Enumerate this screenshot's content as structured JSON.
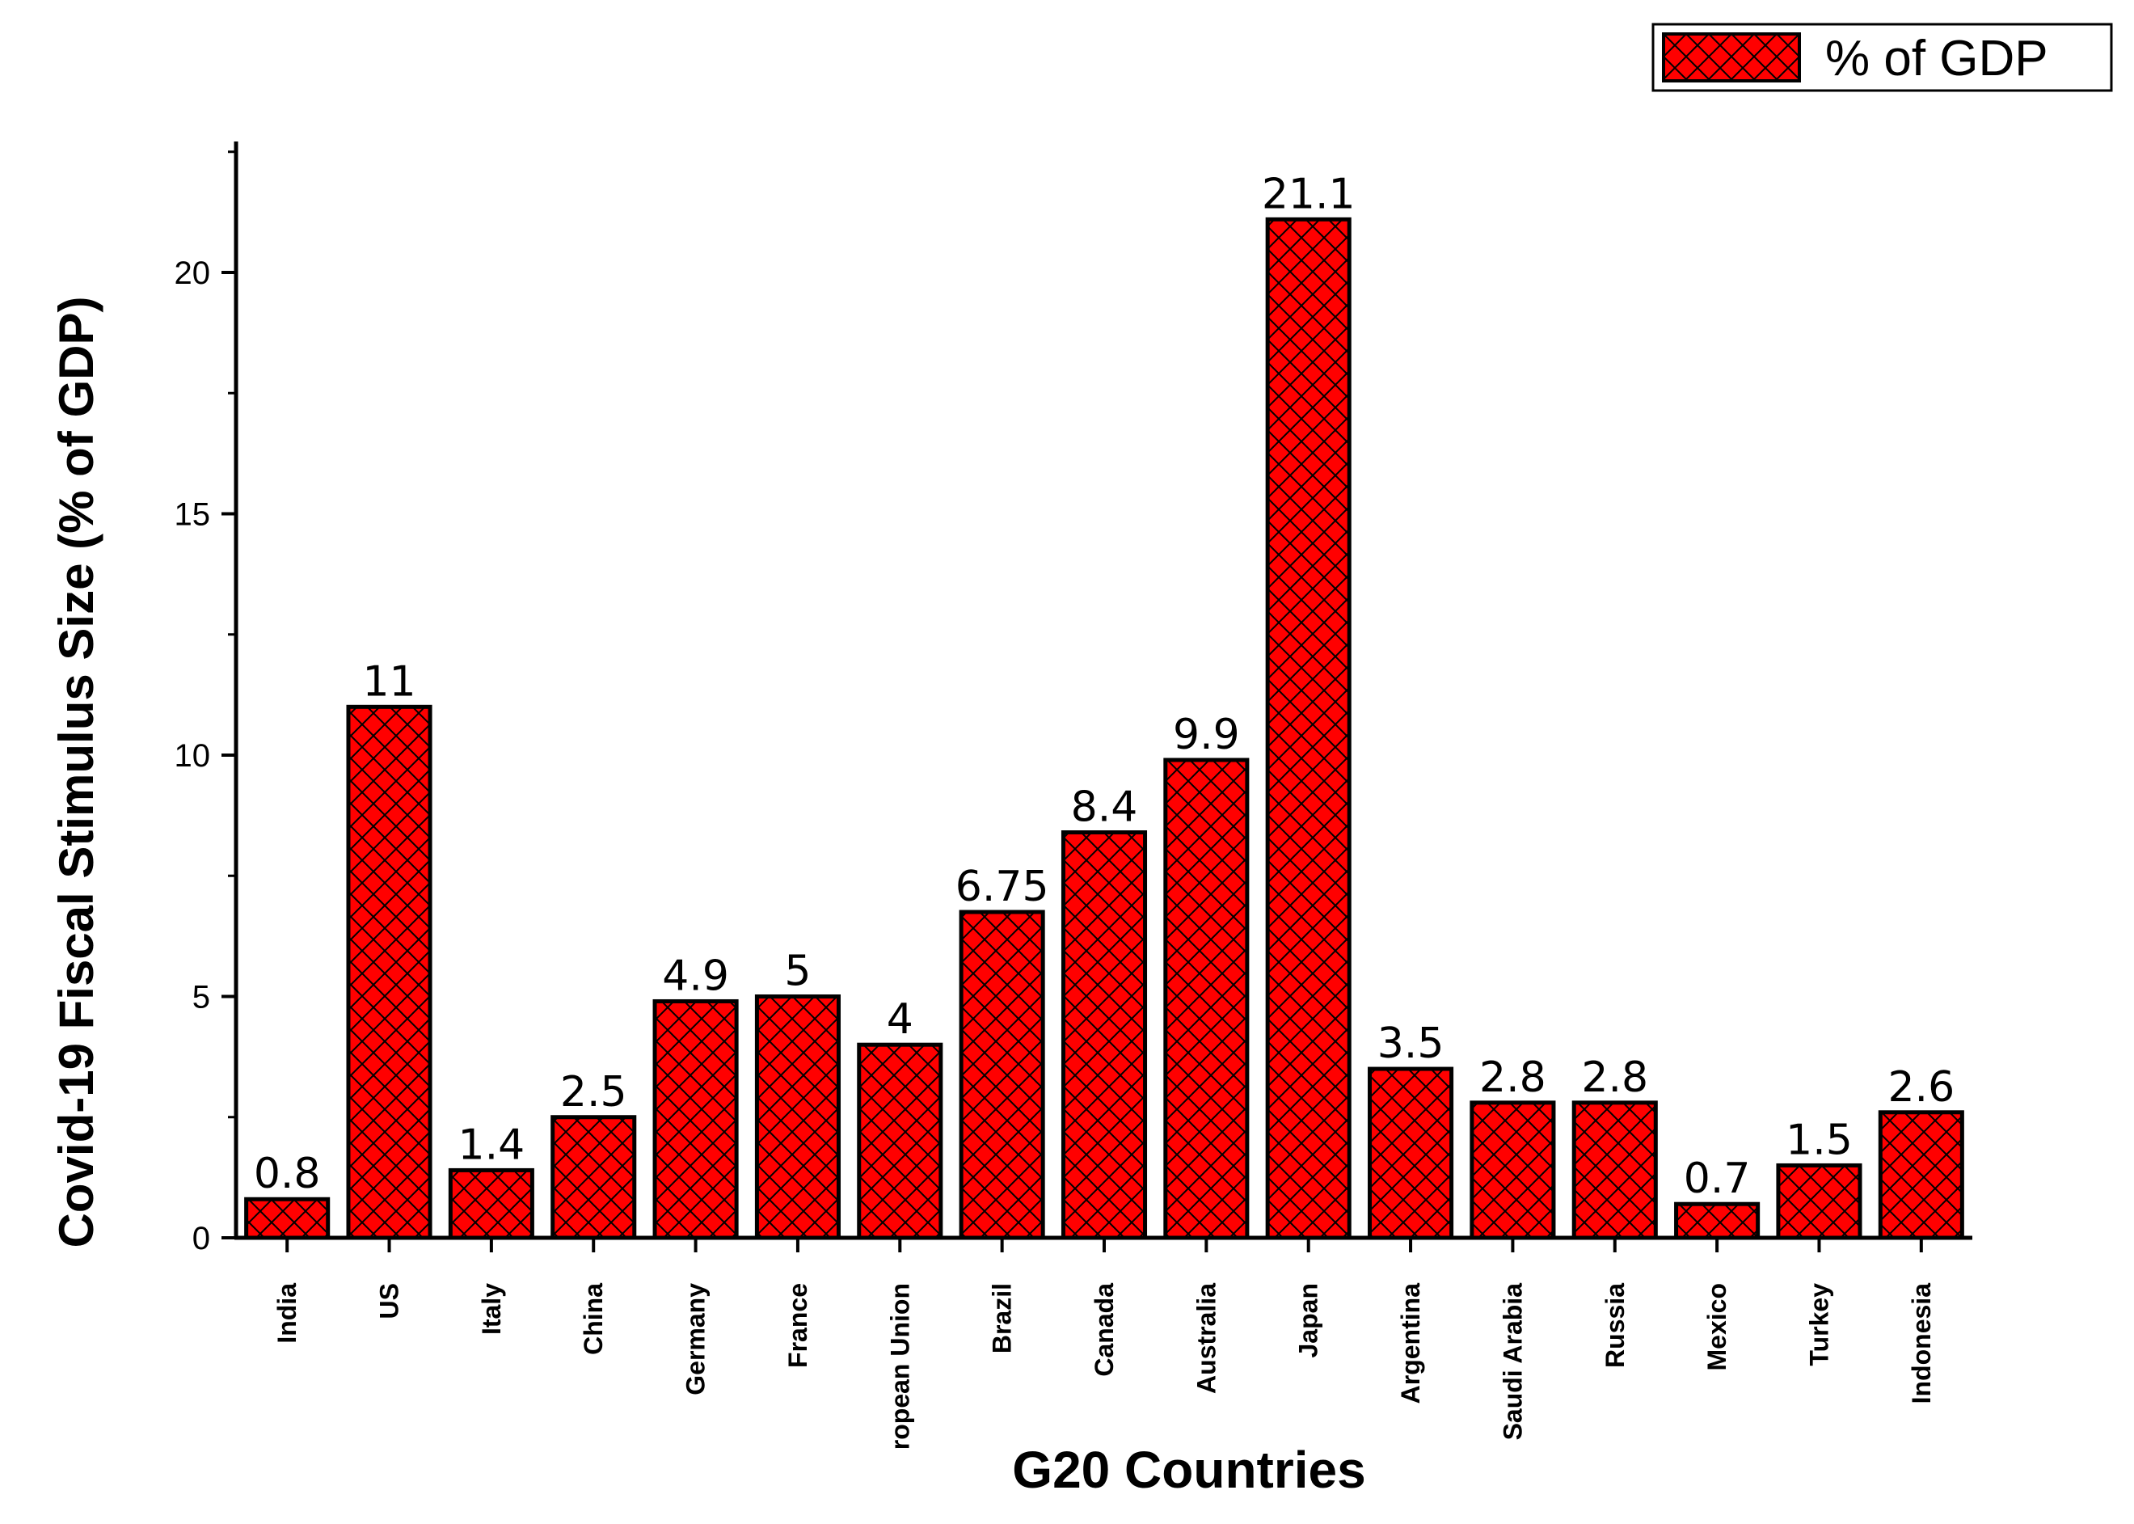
{
  "chart_data": {
    "type": "bar",
    "categories": [
      "India",
      "US",
      "Italy",
      "China",
      "Germany",
      "France",
      "ropean Union",
      "Brazil",
      "Canada",
      "Australia",
      "Japan",
      "Argentina",
      "Saudi Arabia",
      "Russia",
      "Mexico",
      "Turkey",
      "Indonesia"
    ],
    "series": [
      {
        "name": "% of GDP",
        "values": [
          0.8,
          11,
          1.4,
          2.5,
          4.9,
          5,
          4,
          6.75,
          8.4,
          9.9,
          21.1,
          3.5,
          2.8,
          2.8,
          0.7,
          1.5,
          2.6
        ],
        "value_labels": [
          "0.8",
          "11",
          "1.4",
          "2.5",
          "4.9",
          "5",
          "4",
          "6.75",
          "8.4",
          "9.9",
          "21.1",
          "3.5",
          "2.8",
          "2.8",
          "0.7",
          "1.5",
          "2.6"
        ]
      }
    ],
    "xlabel": "G20 Countries",
    "ylabel": "Covid-19 Fiscal Stimulus Size (% of GDP)",
    "ylim": [
      0,
      22.7
    ],
    "yticks": [
      0,
      5,
      10,
      15,
      20
    ],
    "ytick_labels": [
      "0",
      "5",
      "10",
      "15",
      "20"
    ],
    "legend_position": "top-right",
    "grid": false,
    "colors": {
      "bar_fill": "#ff0000",
      "hatch": "#000000",
      "axis": "#000000"
    },
    "bar_pattern": "crosshatch"
  }
}
